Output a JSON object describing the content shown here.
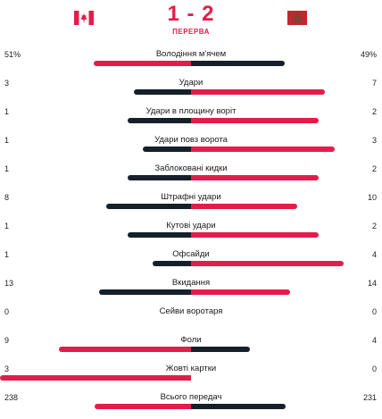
{
  "match": {
    "score": "1 - 2",
    "status": "ПЕРЕРВА",
    "home_flag": "canada-flag",
    "away_flag": "morocco-flag"
  },
  "colors": {
    "accent": "#e31d4b",
    "dark": "#15202b"
  },
  "stats": [
    {
      "label": "Володіння м'ячем",
      "home": "51%",
      "away": "49%",
      "home_frac": 0.51,
      "away_frac": 0.49
    },
    {
      "label": "Удари",
      "home": "3",
      "away": "7",
      "home_frac": 0.3,
      "away_frac": 0.7
    },
    {
      "label": "Удари в площину воріт",
      "home": "1",
      "away": "2",
      "home_frac": 0.333,
      "away_frac": 0.667
    },
    {
      "label": "Удари повз ворота",
      "home": "1",
      "away": "3",
      "home_frac": 0.25,
      "away_frac": 0.75
    },
    {
      "label": "Заблоковані кидки",
      "home": "1",
      "away": "2",
      "home_frac": 0.333,
      "away_frac": 0.667
    },
    {
      "label": "Штрафні удари",
      "home": "8",
      "away": "10",
      "home_frac": 0.444,
      "away_frac": 0.556
    },
    {
      "label": "Кутові удари",
      "home": "1",
      "away": "2",
      "home_frac": 0.333,
      "away_frac": 0.667
    },
    {
      "label": "Офсайди",
      "home": "1",
      "away": "4",
      "home_frac": 0.2,
      "away_frac": 0.8
    },
    {
      "label": "Вкидання",
      "home": "13",
      "away": "14",
      "home_frac": 0.481,
      "away_frac": 0.519
    },
    {
      "label": "Сейви воротаря",
      "home": "0",
      "away": "0",
      "home_frac": 0,
      "away_frac": 0
    },
    {
      "label": "Фоли",
      "home": "9",
      "away": "4",
      "home_frac": 0.692,
      "away_frac": 0.308
    },
    {
      "label": "Жовті картки",
      "home": "3",
      "away": "0",
      "home_frac": 1.0,
      "away_frac": 0
    },
    {
      "label": "Всього передач",
      "home": "238",
      "away": "231",
      "home_frac": 0.507,
      "away_frac": 0.493
    }
  ]
}
